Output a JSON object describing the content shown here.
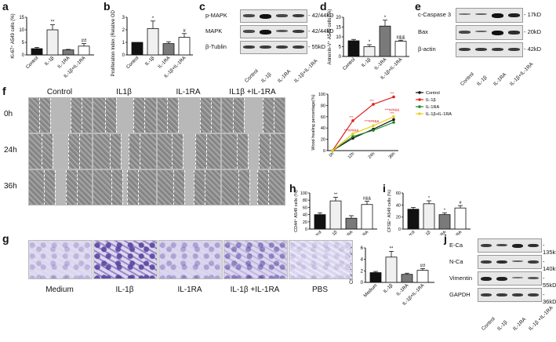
{
  "panels": {
    "a": {
      "label": "a",
      "ylabel": "Ki-67⁺ A549 cells (%)",
      "ticks": [
        "0",
        "5",
        "10",
        "15"
      ],
      "groups": [
        "Control",
        "IL-1β",
        "IL-1RA",
        "IL-1β+IL-1RA"
      ],
      "sig": [
        "",
        "**",
        "",
        "##"
      ]
    },
    "b": {
      "label": "b",
      "ylabel": "Proliferation Index (Relative OD Value)",
      "ticks": [
        "0",
        "1",
        "2",
        "3"
      ],
      "groups": [
        "Control",
        "IL-1β",
        "IL-1RA",
        "IL-1β+IL-1RA"
      ],
      "sig": [
        "",
        "*",
        "",
        "#"
      ]
    },
    "c": {
      "label": "c",
      "rows": [
        "p-MAPK",
        "MAPK",
        "β-Tublin"
      ],
      "mw": [
        "- 42/44kD",
        "- 42/44kD",
        "- 55kD"
      ],
      "groups": [
        "Control",
        "IL-1β",
        "IL-1RA",
        "IL-1β+IL-1RA"
      ]
    },
    "d": {
      "label": "d",
      "ylabel": "Annexin-V⁺ A549 cells (%)",
      "ticks": [
        "0",
        "5",
        "10",
        "15",
        "20"
      ],
      "groups": [
        "Control",
        "IL-1β",
        "IL-1RA",
        "IL-1β+IL-1RA"
      ],
      "sig": [
        "",
        "*",
        "*",
        "#&&"
      ]
    },
    "e": {
      "label": "e",
      "rows": [
        "c-Caspase 3",
        "Bax",
        "β-actin"
      ],
      "mw": [
        "- 17kD",
        "- 20kD",
        "- 42kD"
      ],
      "groups": [
        "Control",
        "IL-1β",
        "IL-1RA",
        "IL-1β+IL-1RA"
      ]
    },
    "f": {
      "label": "f",
      "columns": [
        "Control",
        "IL1β",
        "IL-1RA",
        "IL1β +IL-1RA"
      ],
      "rows": [
        "0h",
        "24h",
        "36h"
      ],
      "ylabel": "Wood healing percentage(%)",
      "yticks": [
        "0",
        "20",
        "40",
        "60",
        "80",
        "100"
      ],
      "xticks": [
        "0h",
        "12h",
        "24h",
        "36h"
      ],
      "legend": [
        "Control",
        "IL-1β",
        "IL-1RA",
        "IL-1β+IL-1RA"
      ],
      "annot": [
        "***",
        "***",
        "***",
        "***",
        "***",
        "***###&&",
        "***###&&",
        "***###&&"
      ]
    },
    "g": {
      "label": "g",
      "columns": [
        "Medium",
        "IL-1β",
        "IL-1RA",
        "IL-1β +IL-1RA",
        "PBS"
      ],
      "ylabel": "Chemotaxic Index",
      "ticks": [
        "0",
        "2",
        "4",
        "6"
      ],
      "groups": [
        "Medium",
        "IL-1β",
        "IL-1RA",
        "IL-1β+IL-1RA"
      ],
      "sig": [
        "",
        "**",
        "",
        "##"
      ]
    },
    "h": {
      "label": "h",
      "ylabel": "CD44⁺ A549 cells (%)",
      "ticks": [
        "0",
        "20",
        "40",
        "60",
        "80",
        "100"
      ],
      "groups": [
        "Control",
        "IL-1β",
        "IL-1RA",
        "IL-1β+IL-1RA"
      ],
      "sig": [
        "",
        "**",
        "",
        "#&&"
      ]
    },
    "i": {
      "label": "i",
      "ylabel": "CFSE⁺ A549 cells (%)",
      "ticks": [
        "0",
        "20",
        "40",
        "60"
      ],
      "groups": [
        "Control",
        "IL-1β",
        "IL-1RA",
        "IL-1β+IL-1RA"
      ],
      "sig": [
        "",
        "*",
        "*",
        "#"
      ]
    },
    "j": {
      "label": "j",
      "rows": [
        "E-Ca",
        "N-Ca",
        "Vimentin",
        "GAPDH"
      ],
      "mw": [
        "- 135kD",
        "- 140kD",
        "- 55kD",
        "- 36kD"
      ],
      "groups": [
        "Control",
        "IL-1β",
        "IL-1RA",
        "IL-1β +IL-1RA"
      ]
    }
  },
  "chart_data": [
    {
      "type": "bar",
      "panel": "a",
      "categories": [
        "Control",
        "IL-1β",
        "IL-1RA",
        "IL-1β+IL-1RA"
      ],
      "values": [
        2.5,
        10,
        2,
        3.5
      ],
      "errors": [
        0.5,
        2,
        0.2,
        1
      ],
      "ylim": [
        0,
        15
      ],
      "ylabel": "Ki-67⁺ A549 cells (%)"
    },
    {
      "type": "bar",
      "panel": "b",
      "categories": [
        "Control",
        "IL-1β",
        "IL-1RA",
        "IL-1β+IL-1RA"
      ],
      "values": [
        1,
        2.1,
        0.9,
        1.4
      ],
      "errors": [
        0,
        0.6,
        0.15,
        0.3
      ],
      "ylim": [
        0,
        3
      ],
      "ylabel": "Proliferation Index (Relative OD Value)"
    },
    {
      "type": "bar",
      "panel": "d",
      "categories": [
        "Control",
        "IL-1β",
        "IL-1RA",
        "IL-1β+IL-1RA"
      ],
      "values": [
        8,
        5,
        15.5,
        7.8
      ],
      "errors": [
        0.7,
        1,
        3,
        0.5
      ],
      "ylim": [
        0,
        20
      ],
      "ylabel": "Annexin-V⁺ A549 cells (%)"
    },
    {
      "type": "line",
      "panel": "f",
      "x": [
        "0h",
        "12h",
        "24h",
        "36h"
      ],
      "ylim": [
        0,
        100
      ],
      "ylabel": "Wood healing percentage(%)",
      "series": [
        {
          "name": "Control",
          "values": [
            0,
            22,
            38,
            55
          ]
        },
        {
          "name": "IL-1β",
          "values": [
            0,
            53,
            82,
            95
          ]
        },
        {
          "name": "IL-1RA",
          "values": [
            0,
            25,
            36,
            50
          ]
        },
        {
          "name": "IL-1β+IL-1RA",
          "values": [
            0,
            30,
            44,
            60
          ]
        }
      ]
    },
    {
      "type": "bar",
      "panel": "g",
      "categories": [
        "Medium",
        "IL-1β",
        "IL-1RA",
        "IL-1β+IL-1RA"
      ],
      "values": [
        1.7,
        4.4,
        1.4,
        2.1
      ],
      "errors": [
        0.2,
        1,
        0.2,
        0.3
      ],
      "ylim": [
        0,
        6
      ],
      "ylabel": "Chemotaxic Index"
    },
    {
      "type": "bar",
      "panel": "h",
      "categories": [
        "Control",
        "IL-1β",
        "IL-1RA",
        "IL-1β+IL-1RA"
      ],
      "values": [
        40,
        78,
        30,
        68
      ],
      "errors": [
        5,
        10,
        7,
        9
      ],
      "ylim": [
        0,
        100
      ],
      "ylabel": "CD44⁺ A549 cells (%)"
    },
    {
      "type": "bar",
      "panel": "i",
      "categories": [
        "Control",
        "IL-1β",
        "IL-1RA",
        "IL-1β+IL-1RA"
      ],
      "values": [
        33,
        42,
        24,
        35
      ],
      "errors": [
        3,
        5,
        3,
        4
      ],
      "ylim": [
        0,
        60
      ],
      "ylabel": "CFSE⁺ A549 cells (%)"
    }
  ],
  "colors": {
    "black": "#111111",
    "il1b": "#f0f0f0",
    "il1ra": "#7a7a7a",
    "combo": "#ffffff",
    "red": "#e02020",
    "green": "#1a8a2a",
    "yellow": "#e8d21a"
  }
}
